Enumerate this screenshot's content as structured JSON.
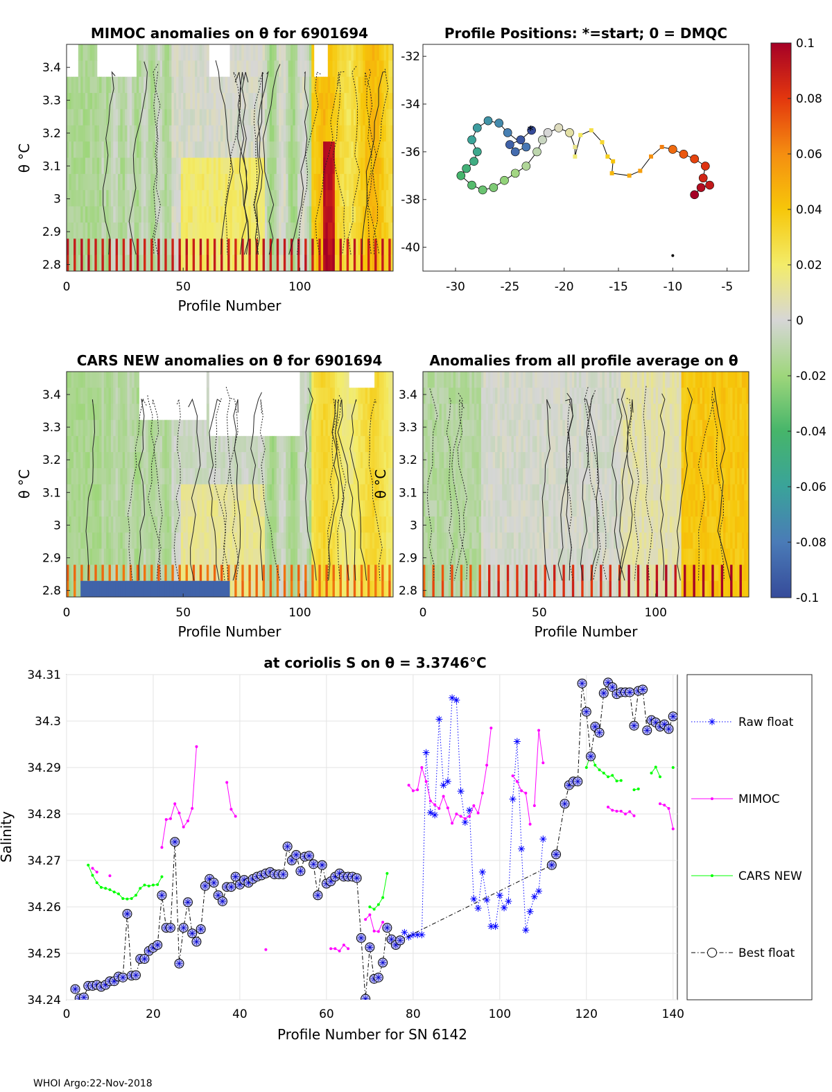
{
  "panels": {
    "p1": {
      "title": "MIMOC anomalies on θ  for 6901694",
      "ylabel": "θ °C",
      "xlabel": "Profile Number",
      "xticks": [
        0,
        50,
        100
      ],
      "yticks": [
        2.8,
        2.9,
        3,
        3.1,
        3.2,
        3.3,
        3.4
      ],
      "xlim": [
        0,
        140
      ],
      "ylim": [
        2.78,
        3.47
      ]
    },
    "p2": {
      "title": "Profile Positions: *=start; 0 = DMQC",
      "xticks": [
        -30,
        -25,
        -20,
        -15,
        -10,
        -5
      ],
      "yticks": [
        -32,
        -34,
        -36,
        -38,
        -40
      ],
      "xlim": [
        -33,
        -3
      ],
      "ylim": [
        -41,
        -31.5
      ]
    },
    "p3": {
      "title": "CARS NEW anomalies on θ for 6901694",
      "ylabel": "θ °C",
      "xlabel": "Profile Number",
      "xticks": [
        0,
        50,
        100
      ],
      "yticks": [
        2.8,
        2.9,
        3,
        3.1,
        3.2,
        3.3,
        3.4
      ]
    },
    "p4": {
      "title": "Anomalies from all profile average on θ",
      "ylabel": "θ °C",
      "xlabel": "Profile Number",
      "xticks": [
        0,
        50,
        100
      ],
      "yticks": [
        2.8,
        2.9,
        3,
        3.1,
        3.2,
        3.3,
        3.4
      ]
    }
  },
  "colorbar": {
    "ticks": [
      "0.1",
      "0.08",
      "0.06",
      "0.04",
      "0.02",
      "0",
      "-0.02",
      "-0.04",
      "-0.06",
      "-0.08",
      "-0.1"
    ],
    "range": [
      -0.1,
      0.1
    ]
  },
  "chart_data": {
    "type": "line",
    "title": "at coriolis S on θ = 3.3746°C",
    "xlabel": "Profile Number for SN 6142",
    "ylabel": "Salinity",
    "xlim": [
      0,
      141
    ],
    "ylim": [
      34.24,
      34.31
    ],
    "xticks": [
      0,
      20,
      40,
      60,
      80,
      100,
      120,
      140
    ],
    "yticks": [
      34.24,
      34.25,
      34.26,
      34.27,
      34.28,
      34.29,
      34.3,
      34.31
    ],
    "series": [
      {
        "name": "Raw float",
        "color": "#0000ff",
        "style": "dotted",
        "marker": "asterisk",
        "x": [
          78,
          79,
          80,
          81,
          82,
          83,
          84,
          85,
          86,
          87,
          88,
          89,
          90,
          91,
          92,
          93,
          94,
          95,
          96,
          97,
          98,
          99,
          100,
          101,
          102,
          103,
          104,
          105,
          106,
          107,
          108,
          109,
          110
        ],
        "y": [
          34.2545,
          34.2535,
          34.254,
          34.254,
          34.254,
          34.2932,
          34.2803,
          34.2798,
          34.3004,
          34.2862,
          34.287,
          34.305,
          34.3045,
          34.2849,
          34.2782,
          34.2808,
          34.2617,
          34.2597,
          34.2675,
          34.2615,
          34.2558,
          34.2558,
          34.2625,
          34.2598,
          34.2612,
          34.2832,
          34.2956,
          34.2725,
          34.255,
          34.259,
          34.2622,
          34.2634,
          34.2746
        ]
      },
      {
        "name": "MIMOC",
        "color": "#ff00ff",
        "style": "solid",
        "marker": "dot",
        "segments": [
          {
            "x": [
              6,
              7
            ],
            "y": [
              34.2683,
              34.2675
            ]
          },
          {
            "x": [
              10
            ],
            "y": [
              34.2667
            ]
          },
          {
            "x": [
              22,
              23,
              24,
              25,
              26,
              27,
              28,
              29,
              30
            ],
            "y": [
              34.2728,
              34.2788,
              34.279,
              34.2822,
              34.2802,
              34.2772,
              34.2785,
              34.2812,
              34.2945
            ]
          },
          {
            "x": [
              37,
              38,
              39
            ],
            "y": [
              34.2868,
              34.281,
              34.2795
            ]
          },
          {
            "x": [
              46
            ],
            "y": [
              34.2508
            ]
          },
          {
            "x": [
              61,
              62,
              63,
              64,
              65
            ],
            "y": [
              34.251,
              34.251,
              34.2505,
              34.2518,
              34.251
            ]
          },
          {
            "x": [
              69,
              70,
              71,
              72,
              73
            ],
            "y": [
              34.2573,
              34.2583,
              34.2548,
              34.2547,
              34.2567
            ]
          },
          {
            "x": [
              79,
              80,
              81,
              82,
              83,
              84,
              85,
              86,
              87,
              88,
              89,
              90,
              91,
              92,
              93,
              94,
              95,
              96,
              97,
              98
            ],
            "y": [
              34.2862,
              34.285,
              34.2852,
              34.29,
              34.287,
              34.2828,
              34.282,
              34.2812,
              34.2838,
              34.2813,
              34.278,
              34.28,
              34.2795,
              34.279,
              34.2795,
              34.2818,
              34.2802,
              34.2845,
              34.2905,
              34.2985
            ]
          },
          {
            "x": [
              103,
              104,
              105,
              106,
              107
            ],
            "y": [
              34.2882,
              34.287,
              34.285,
              34.2845,
              34.2778
            ]
          },
          {
            "x": [
              108,
              109,
              110
            ],
            "y": [
              34.2818,
              34.298,
              34.291
            ]
          },
          {
            "x": [
              125,
              126,
              127,
              128,
              129,
              130,
              131
            ],
            "y": [
              34.2815,
              34.2808,
              34.2806,
              34.2806,
              34.28,
              34.2805,
              34.2796
            ]
          },
          {
            "x": [
              137,
              138,
              139,
              140
            ],
            "y": [
              34.2822,
              34.2819,
              34.2812,
              34.2768
            ]
          }
        ]
      },
      {
        "name": "CARS NEW",
        "color": "#00ff00",
        "style": "solid",
        "marker": "dot",
        "segments": [
          {
            "x": [
              5,
              6,
              7,
              8,
              9,
              10,
              11,
              12,
              13,
              14,
              15,
              16,
              17,
              18,
              19,
              20,
              21,
              22
            ],
            "y": [
              34.269,
              34.2668,
              34.2652,
              34.2642,
              34.264,
              34.2637,
              34.2632,
              34.2628,
              34.2618,
              34.2617,
              34.2618,
              34.2625,
              34.264,
              34.2647,
              34.2645,
              34.2647,
              34.2648,
              34.2665
            ]
          },
          {
            "x": [
              70,
              71,
              72,
              73,
              74
            ],
            "y": [
              34.26,
              34.2595,
              34.2605,
              34.262,
              34.2672
            ]
          },
          {
            "x": [
              120,
              121,
              122,
              123,
              124,
              125,
              126,
              127,
              128
            ],
            "y": [
              34.29,
              34.293,
              34.2905,
              34.2895,
              34.2888,
              34.288,
              34.2883,
              34.2871,
              34.2872
            ]
          },
          {
            "x": [
              131,
              132
            ],
            "y": [
              34.2852,
              34.2854
            ]
          },
          {
            "x": [
              135,
              136,
              137
            ],
            "y": [
              34.2888,
              34.2901,
              34.288
            ]
          },
          {
            "x": [
              140
            ],
            "y": [
              34.29
            ]
          }
        ]
      },
      {
        "name": "Best float",
        "color": "#000000",
        "style": "dashdot",
        "marker": "circle",
        "x": [
          2,
          3,
          4,
          5,
          6,
          7,
          8,
          9,
          10,
          11,
          12,
          13,
          14,
          15,
          16,
          17,
          18,
          19,
          20,
          21,
          22,
          23,
          24,
          25,
          26,
          27,
          28,
          29,
          30,
          31,
          32,
          33,
          34,
          35,
          36,
          37,
          38,
          39,
          40,
          41,
          42,
          43,
          44,
          45,
          46,
          47,
          48,
          49,
          50,
          51,
          52,
          53,
          54,
          55,
          56,
          57,
          58,
          59,
          60,
          61,
          62,
          63,
          64,
          65,
          66,
          67,
          68,
          69,
          70,
          71,
          72,
          73,
          74,
          75,
          76,
          77,
          112,
          113,
          115,
          116,
          117,
          118,
          119,
          120,
          121,
          122,
          123,
          124,
          125,
          126,
          127,
          128,
          129,
          130,
          131,
          132,
          133,
          134,
          135,
          136,
          137,
          138,
          139,
          140
        ],
        "y": [
          34.2423,
          34.2403,
          34.2405,
          34.243,
          34.243,
          34.2432,
          34.2428,
          34.2432,
          34.244,
          34.244,
          34.245,
          34.2448,
          34.2585,
          34.2452,
          34.2453,
          34.2488,
          34.2488,
          34.2505,
          34.2512,
          34.2518,
          34.2625,
          34.2555,
          34.2555,
          34.274,
          34.2478,
          34.2555,
          34.261,
          34.2543,
          34.2525,
          34.2552,
          34.2645,
          34.266,
          34.2652,
          34.2625,
          34.2612,
          34.2643,
          34.2643,
          34.2665,
          34.2648,
          34.2658,
          34.2652,
          34.266,
          34.2665,
          34.2668,
          34.2672,
          34.2675,
          34.267,
          34.267,
          34.267,
          34.273,
          34.27,
          34.2712,
          34.2677,
          34.2708,
          34.271,
          34.2692,
          34.2625,
          34.269,
          34.265,
          34.2655,
          34.2665,
          34.2672,
          34.2665,
          34.2665,
          34.2665,
          34.2662,
          34.2533,
          34.2402,
          34.2513,
          34.2445,
          34.2448,
          34.248,
          34.2555,
          34.253,
          34.2518,
          34.2528,
          34.269,
          34.2713,
          34.2822,
          34.2862,
          34.287,
          34.287,
          34.3081,
          34.302,
          34.2924,
          34.2988,
          34.2975,
          34.306,
          34.3083,
          34.3073,
          34.3058,
          34.3062,
          34.3062,
          34.3062,
          34.299,
          34.3065,
          34.3068,
          34.298,
          34.3002,
          34.2997,
          34.2988,
          34.2993,
          34.2983,
          34.301
        ]
      }
    ],
    "legend": [
      "Raw float",
      "MIMOC",
      "CARS NEW",
      "Best float"
    ]
  },
  "footer": "WHOI Argo:22-Nov-2018"
}
